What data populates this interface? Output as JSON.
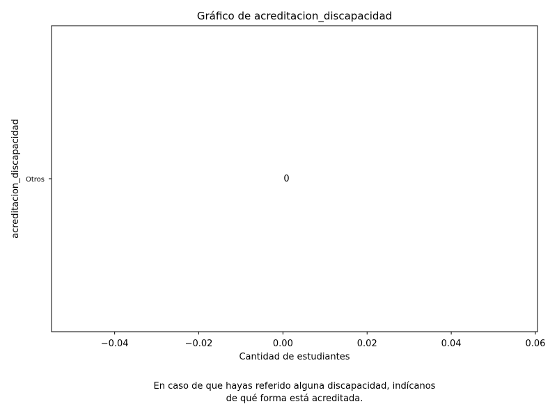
{
  "chart_data": {
    "type": "bar",
    "orientation": "horizontal",
    "title": "Gráfico de acreditacion_discapacidad",
    "xlabel": "Cantidad de estudiantes",
    "ylabel": "acreditacion_discapacidad",
    "categories": [
      "Otros"
    ],
    "values": [
      0
    ],
    "data_labels": [
      "0"
    ],
    "xlim": [
      -0.055,
      0.0605
    ],
    "xticks": [
      -0.04,
      -0.02,
      0.0,
      0.02,
      0.04,
      0.06
    ],
    "xtick_labels": [
      "−0.04",
      "−0.02",
      "0.00",
      "0.02",
      "0.04",
      "0.06"
    ],
    "grid": false,
    "legend": "none",
    "colors": {
      "axis": "#000000",
      "text": "#000000",
      "background": "#ffffff"
    }
  },
  "caption": {
    "line1": "En caso de que hayas referido alguna discapacidad, indícanos",
    "line2": "de qué forma está acreditada."
  }
}
